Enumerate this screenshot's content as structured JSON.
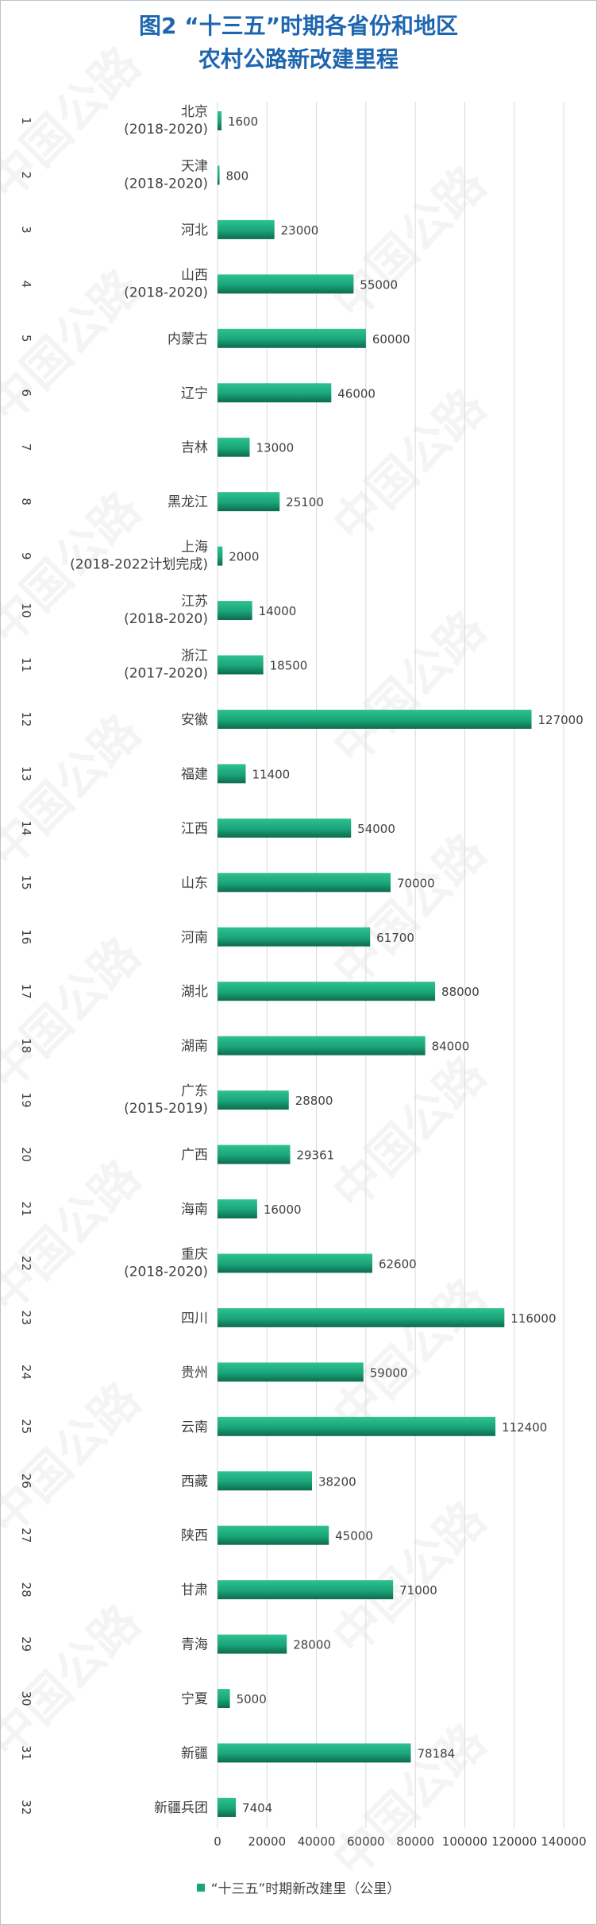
{
  "title": {
    "line1": "图2 “十三五”时期各省份和地区",
    "line2": "农村公路新改建里程"
  },
  "watermark": "中国公路",
  "colors": {
    "title": "#1f66b0",
    "bar_light": "#2fc28f",
    "bar_mid": "#1aa47a",
    "bar_dark": "#0d6b4c",
    "grid": "#d9d9d9",
    "text": "#404040",
    "watermark": "#c2c2c2"
  },
  "chart_data": {
    "type": "bar",
    "orientation": "horizontal",
    "index_labels": [
      "1",
      "2",
      "3",
      "4",
      "5",
      "6",
      "7",
      "8",
      "9",
      "10",
      "11",
      "12",
      "13",
      "14",
      "15",
      "16",
      "17",
      "18",
      "19",
      "20",
      "21",
      "22",
      "23",
      "24",
      "25",
      "26",
      "27",
      "28",
      "29",
      "30",
      "31",
      "32"
    ],
    "categories": [
      [
        "北京",
        "(2018-2020)"
      ],
      [
        "天津",
        "(2018-2020)"
      ],
      [
        "河北"
      ],
      [
        "山西",
        "(2018-2020)"
      ],
      [
        "内蒙古"
      ],
      [
        "辽宁"
      ],
      [
        "吉林"
      ],
      [
        "黑龙江"
      ],
      [
        "上海",
        "(2018-2022计划完成)"
      ],
      [
        "江苏",
        "(2018-2020)"
      ],
      [
        "浙江",
        "(2017-2020)"
      ],
      [
        "安徽"
      ],
      [
        "福建"
      ],
      [
        "江西"
      ],
      [
        "山东"
      ],
      [
        "河南"
      ],
      [
        "湖北"
      ],
      [
        "湖南"
      ],
      [
        "广东",
        "(2015-2019)"
      ],
      [
        "广西"
      ],
      [
        "海南"
      ],
      [
        "重庆",
        "(2018-2020)"
      ],
      [
        "四川"
      ],
      [
        "贵州"
      ],
      [
        "云南"
      ],
      [
        "西藏"
      ],
      [
        "陕西"
      ],
      [
        "甘肃"
      ],
      [
        "青海"
      ],
      [
        "宁夏"
      ],
      [
        "新疆"
      ],
      [
        "新疆兵团"
      ]
    ],
    "series": [
      {
        "name": "“十三五”时期新改建里（公里）",
        "values": [
          1600,
          800,
          23000,
          55000,
          60000,
          46000,
          13000,
          25100,
          2000,
          14000,
          18500,
          127000,
          11400,
          54000,
          70000,
          61700,
          88000,
          84000,
          28800,
          29361,
          16000,
          62600,
          116000,
          59000,
          112400,
          38200,
          45000,
          71000,
          28000,
          5000,
          78184,
          7404
        ]
      }
    ],
    "x_ticks": [
      "0",
      "20000",
      "40000",
      "60000",
      "80000",
      "100000",
      "120000",
      "140000"
    ],
    "xlim": [
      0,
      140000
    ],
    "grid": "vertical",
    "legend_position": "bottom"
  }
}
